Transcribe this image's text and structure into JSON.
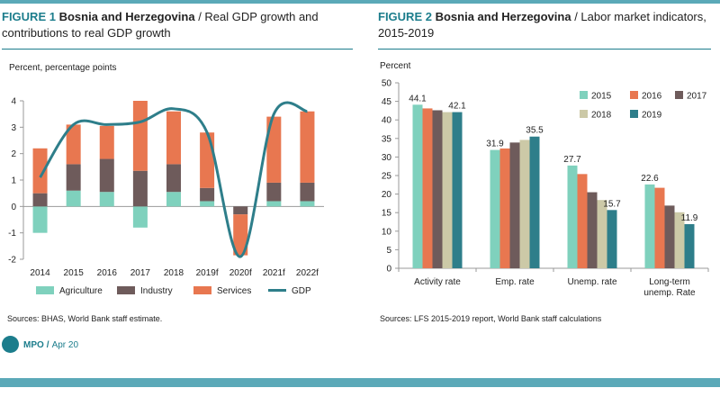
{
  "colors": {
    "agriculture": "#7fd1bd",
    "industry": "#6e5b5b",
    "services": "#e87750",
    "gdp_line": "#2e7e8a",
    "c2015": "#7fd1bd",
    "c2016": "#e87750",
    "c2017": "#6e5b5b",
    "c2018": "#ccc9a7",
    "c2019": "#2e7e8a",
    "accent": "#1c7d8c"
  },
  "figure1": {
    "label": "FIGURE 1",
    "country": "Bosnia and Herzegovina",
    "title_rest": " / Real GDP growth and contributions to real GDP growth",
    "unit": "Percent, percentage points",
    "source": "Sources: BHAS, World Bank staff estimate."
  },
  "figure2": {
    "label": "FIGURE 2",
    "country": "Bosnia and Herzegovina",
    "title_rest": " /  Labor market indicators, 2015-2019",
    "unit": "Percent",
    "source": "Sources: LFS 2015-2019 report, World Bank staff calculations"
  },
  "footer": {
    "mpo": "MPO",
    "sep": "/",
    "date": "Apr 20"
  },
  "chart_data": [
    {
      "type": "bar",
      "stacked": true,
      "categories": [
        "2014",
        "2015",
        "2016",
        "2017",
        "2018",
        "2019f",
        "2020f",
        "2021f",
        "2022f"
      ],
      "ylim": [
        -2,
        4
      ],
      "yticks": [
        -2,
        -1,
        0,
        1,
        2,
        3,
        4
      ],
      "grid": false,
      "legend_position": "bottom",
      "series": [
        {
          "name": "Agriculture",
          "type": "bar",
          "values": [
            -1.0,
            0.6,
            0.55,
            -0.8,
            0.55,
            0.2,
            0.0,
            0.2,
            0.2
          ]
        },
        {
          "name": "Industry",
          "type": "bar",
          "values": [
            0.5,
            1.0,
            1.25,
            1.35,
            1.05,
            0.5,
            -0.3,
            0.7,
            0.7
          ]
        },
        {
          "name": "Services",
          "type": "bar",
          "values": [
            1.7,
            1.5,
            1.25,
            2.65,
            2.0,
            2.1,
            -1.55,
            2.5,
            2.7
          ]
        },
        {
          "name": "GDP",
          "type": "line",
          "values": [
            1.1,
            3.1,
            3.1,
            3.2,
            3.7,
            2.8,
            -1.9,
            3.5,
            3.6
          ]
        }
      ]
    },
    {
      "type": "bar",
      "categories": [
        "Activity rate",
        "Emp. rate",
        "Unemp. rate",
        "Long-term unemp. Rate"
      ],
      "category_lines": [
        [
          "Activity rate"
        ],
        [
          "Emp. rate"
        ],
        [
          "Unemp. rate"
        ],
        [
          "Long-term",
          "unemp. Rate"
        ]
      ],
      "ylim": [
        0,
        50
      ],
      "yticks": [
        0,
        5,
        10,
        15,
        20,
        25,
        30,
        35,
        40,
        45,
        50
      ],
      "grid": false,
      "legend_position": "top-right",
      "series": [
        {
          "name": "2015",
          "values": [
            44.1,
            31.9,
            27.7,
            22.6
          ]
        },
        {
          "name": "2016",
          "values": [
            43.1,
            32.3,
            25.4,
            21.7
          ]
        },
        {
          "name": "2017",
          "values": [
            42.6,
            33.9,
            20.5,
            16.9
          ]
        },
        {
          "name": "2018",
          "values": [
            42.1,
            34.6,
            18.4,
            15.1
          ]
        },
        {
          "name": "2019",
          "values": [
            42.1,
            35.5,
            15.7,
            11.9
          ]
        }
      ],
      "data_labels": [
        {
          "series": 0,
          "category": 0,
          "text": "44.1"
        },
        {
          "series": 4,
          "category": 0,
          "text": "42.1"
        },
        {
          "series": 0,
          "category": 1,
          "text": "31.9"
        },
        {
          "series": 4,
          "category": 1,
          "text": "35.5"
        },
        {
          "series": 0,
          "category": 2,
          "text": "27.7"
        },
        {
          "series": 4,
          "category": 2,
          "text": "15.7"
        },
        {
          "series": 0,
          "category": 3,
          "text": "22.6"
        },
        {
          "series": 4,
          "category": 3,
          "text": "11.9"
        }
      ]
    }
  ]
}
